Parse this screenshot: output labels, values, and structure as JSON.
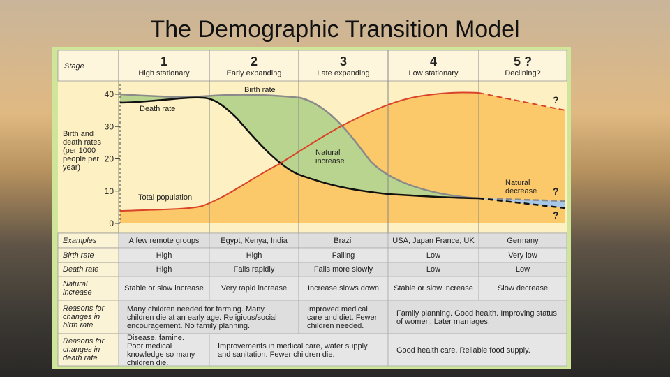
{
  "title": "The Demographic Transition Model",
  "diagram": {
    "stage_label": "Stage",
    "stages": [
      {
        "number": "1",
        "name": "High stationary"
      },
      {
        "number": "2",
        "name": "Early expanding"
      },
      {
        "number": "3",
        "name": "Late expanding"
      },
      {
        "number": "4",
        "name": "Low stationary"
      },
      {
        "number": "5 ?",
        "name": "Declining?"
      }
    ],
    "y_axis_label": "Birth and death rates (per 1000 people per year)",
    "yticks": [
      0,
      10,
      20,
      30,
      40
    ],
    "curve_labels": {
      "birth_rate": "Birth rate",
      "death_rate": "Death rate",
      "total_population": "Total population",
      "natural_increase": "Natural increase",
      "natural_decrease": "Natural decrease"
    },
    "question_marks": [
      "?",
      "?",
      "?"
    ],
    "table": {
      "rows": [
        {
          "label": "Examples",
          "cells": [
            "A few remote groups",
            "Egypt, Kenya, India",
            "Brazil",
            "USA, Japan France, UK",
            "Germany"
          ]
        },
        {
          "label": "Birth rate",
          "cells": [
            "High",
            "High",
            "Falling",
            "Low",
            "Very low"
          ]
        },
        {
          "label": "Death rate",
          "cells": [
            "High",
            "Falls rapidly",
            "Falls more slowly",
            "Low",
            "Low"
          ]
        },
        {
          "label": "Natural increase",
          "cells": [
            "Stable or slow increase",
            "Very rapid increase",
            "Increase slows down",
            "Stable or slow increase",
            "Slow decrease"
          ]
        },
        {
          "label": "Reasons for changes in birth rate",
          "cells": [
            "Many children needed for farming. Many children die at an early age. Religious/social encouragement. No family planning.",
            "Improved medical care and diet. Fewer children needed.",
            "Family planning. Good health. Improving status of women. Later marriages."
          ]
        },
        {
          "label": "Reasons for changes in death rate",
          "cells": [
            "Disease, famine. Poor medical knowledge so many children die.",
            "Improvements in medical care, water supply and sanitation. Fewer children die.",
            "Good health care. Reliable food supply."
          ]
        }
      ]
    }
  }
}
